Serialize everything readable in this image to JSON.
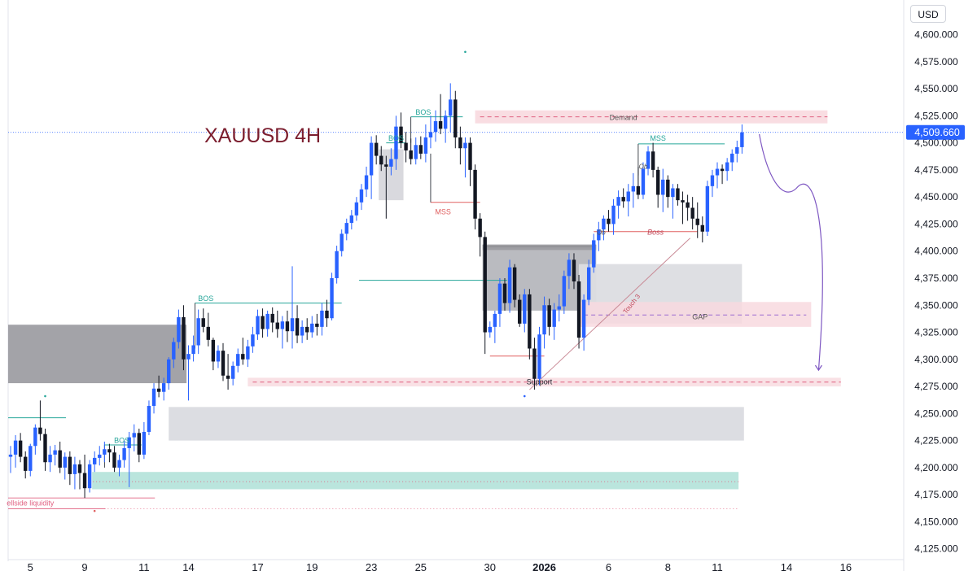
{
  "chart_data": {
    "type": "candlestick",
    "title": "XAUUSD 4H",
    "currency": "USD",
    "last_price": "4,509.660",
    "ylim": [
      4112,
      4620
    ],
    "y_ticks": [
      {
        "value": 4600,
        "label": "4,600.000"
      },
      {
        "value": 4575,
        "label": "4,575.000"
      },
      {
        "value": 4550,
        "label": "4,550.000"
      },
      {
        "value": 4525,
        "label": "4,525.000"
      },
      {
        "value": 4500,
        "label": "4,500.000"
      },
      {
        "value": 4475,
        "label": "4,475.000"
      },
      {
        "value": 4450,
        "label": "4,450.000"
      },
      {
        "value": 4425,
        "label": "4,425.000"
      },
      {
        "value": 4400,
        "label": "4,400.000"
      },
      {
        "value": 4375,
        "label": "4,375.000"
      },
      {
        "value": 4350,
        "label": "4,350.000"
      },
      {
        "value": 4325,
        "label": "4,325.000"
      },
      {
        "value": 4300,
        "label": "4,300.000"
      },
      {
        "value": 4275,
        "label": "4,275.000"
      },
      {
        "value": 4250,
        "label": "4,250.000"
      },
      {
        "value": 4225,
        "label": "4,225.000"
      },
      {
        "value": 4200,
        "label": "4,200.000"
      },
      {
        "value": 4175,
        "label": "4,175.000"
      },
      {
        "value": 4150,
        "label": "4,150.000"
      },
      {
        "value": 4125,
        "label": "4,125.000"
      }
    ],
    "x_ticks": [
      {
        "bar": 4,
        "label": "5",
        "bold": false
      },
      {
        "bar": 15,
        "label": "9",
        "bold": false
      },
      {
        "bar": 27,
        "label": "11",
        "bold": false
      },
      {
        "bar": 36,
        "label": "14",
        "bold": false
      },
      {
        "bar": 50,
        "label": "17",
        "bold": false
      },
      {
        "bar": 61,
        "label": "19",
        "bold": false
      },
      {
        "bar": 73,
        "label": "23",
        "bold": false
      },
      {
        "bar": 83,
        "label": "25",
        "bold": false
      },
      {
        "bar": 97,
        "label": "30",
        "bold": false
      },
      {
        "bar": 108,
        "label": "2026",
        "bold": true
      },
      {
        "bar": 121,
        "label": "6",
        "bold": false
      },
      {
        "bar": 133,
        "label": "8",
        "bold": false
      },
      {
        "bar": 143,
        "label": "11",
        "bold": false
      },
      {
        "bar": 157,
        "label": "14",
        "bold": false
      },
      {
        "bar": 169,
        "label": "16",
        "bold": false
      }
    ],
    "candles": [
      [
        4210,
        4220,
        4195,
        4212
      ],
      [
        4212,
        4230,
        4200,
        4225
      ],
      [
        4225,
        4232,
        4205,
        4210
      ],
      [
        4210,
        4215,
        4190,
        4197
      ],
      [
        4197,
        4222,
        4192,
        4220
      ],
      [
        4220,
        4240,
        4212,
        4237
      ],
      [
        4237,
        4262,
        4225,
        4231
      ],
      [
        4231,
        4236,
        4197,
        4205
      ],
      [
        4205,
        4220,
        4196,
        4212
      ],
      [
        4212,
        4221,
        4202,
        4216
      ],
      [
        4216,
        4224,
        4195,
        4200
      ],
      [
        4200,
        4214,
        4189,
        4210
      ],
      [
        4210,
        4215,
        4184,
        4194
      ],
      [
        4194,
        4210,
        4180,
        4203
      ],
      [
        4203,
        4207,
        4180,
        4195
      ],
      [
        4195,
        4212,
        4172,
        4181
      ],
      [
        4181,
        4207,
        4177,
        4203
      ],
      [
        4203,
        4215,
        4196,
        4209
      ],
      [
        4209,
        4220,
        4202,
        4212
      ],
      [
        4212,
        4224,
        4205,
        4217
      ],
      [
        4217,
        4222,
        4205,
        4214
      ],
      [
        4214,
        4220,
        4196,
        4200
      ],
      [
        4200,
        4212,
        4192,
        4207
      ],
      [
        4207,
        4225,
        4200,
        4218
      ],
      [
        4218,
        4233,
        4182,
        4228
      ],
      [
        4228,
        4240,
        4215,
        4232
      ],
      [
        4232,
        4236,
        4205,
        4212
      ],
      [
        4212,
        4242,
        4208,
        4233
      ],
      [
        4233,
        4262,
        4230,
        4257
      ],
      [
        4257,
        4278,
        4250,
        4273
      ],
      [
        4273,
        4285,
        4265,
        4270
      ],
      [
        4270,
        4283,
        4262,
        4278
      ],
      [
        4278,
        4302,
        4272,
        4300
      ],
      [
        4300,
        4320,
        4292,
        4316
      ],
      [
        4316,
        4346,
        4310,
        4339
      ],
      [
        4339,
        4350,
        4290,
        4300
      ],
      [
        4300,
        4313,
        4262,
        4305
      ],
      [
        4305,
        4322,
        4298,
        4313
      ],
      [
        4313,
        4346,
        4305,
        4338
      ],
      [
        4338,
        4347,
        4325,
        4330
      ],
      [
        4330,
        4343,
        4312,
        4318
      ],
      [
        4318,
        4320,
        4290,
        4298
      ],
      [
        4298,
        4313,
        4292,
        4308
      ],
      [
        4308,
        4315,
        4280,
        4285
      ],
      [
        4285,
        4305,
        4272,
        4282
      ],
      [
        4282,
        4298,
        4276,
        4294
      ],
      [
        4294,
        4310,
        4288,
        4305
      ],
      [
        4305,
        4320,
        4295,
        4300
      ],
      [
        4300,
        4318,
        4293,
        4312
      ],
      [
        4312,
        4330,
        4306,
        4323
      ],
      [
        4323,
        4346,
        4318,
        4340
      ],
      [
        4340,
        4347,
        4320,
        4328
      ],
      [
        4328,
        4345,
        4321,
        4342
      ],
      [
        4342,
        4348,
        4325,
        4334
      ],
      [
        4334,
        4345,
        4320,
        4328
      ],
      [
        4328,
        4340,
        4310,
        4335
      ],
      [
        4335,
        4345,
        4316,
        4326
      ],
      [
        4326,
        4386,
        4310,
        4338
      ],
      [
        4338,
        4350,
        4315,
        4322
      ],
      [
        4322,
        4336,
        4315,
        4330
      ],
      [
        4330,
        4338,
        4318,
        4325
      ],
      [
        4325,
        4340,
        4320,
        4333
      ],
      [
        4333,
        4342,
        4322,
        4330
      ],
      [
        4330,
        4352,
        4322,
        4345
      ],
      [
        4345,
        4355,
        4330,
        4338
      ],
      [
        4338,
        4380,
        4336,
        4375
      ],
      [
        4375,
        4405,
        4370,
        4400
      ],
      [
        4400,
        4420,
        4395,
        4416
      ],
      [
        4416,
        4430,
        4410,
        4426
      ],
      [
        4426,
        4438,
        4420,
        4433
      ],
      [
        4433,
        4450,
        4428,
        4445
      ],
      [
        4445,
        4462,
        4438,
        4457
      ],
      [
        4457,
        4478,
        4450,
        4470
      ],
      [
        4470,
        4506,
        4448,
        4500
      ],
      [
        4500,
        4507,
        4480,
        4488
      ],
      [
        4488,
        4497,
        4474,
        4480
      ],
      [
        4480,
        4488,
        4430,
        4478
      ],
      [
        4478,
        4495,
        4470,
        4485
      ],
      [
        4485,
        4525,
        4475,
        4515
      ],
      [
        4515,
        4528,
        4495,
        4500
      ],
      [
        4500,
        4510,
        4482,
        4493
      ],
      [
        4493,
        4504,
        4480,
        4485
      ],
      [
        4485,
        4505,
        4480,
        4498
      ],
      [
        4498,
        4506,
        4485,
        4490
      ],
      [
        4490,
        4517,
        4482,
        4505
      ],
      [
        4505,
        4525,
        4495,
        4510
      ],
      [
        4510,
        4530,
        4501,
        4520
      ],
      [
        4520,
        4545,
        4508,
        4513
      ],
      [
        4513,
        4530,
        4500,
        4525
      ],
      [
        4525,
        4555,
        4510,
        4540
      ],
      [
        4540,
        4548,
        4495,
        4505
      ],
      [
        4505,
        4515,
        4480,
        4495
      ],
      [
        4495,
        4505,
        4468,
        4500
      ],
      [
        4500,
        4505,
        4460,
        4475
      ],
      [
        4475,
        4480,
        4420,
        4430
      ],
      [
        4430,
        4435,
        4395,
        4413
      ],
      [
        4413,
        4418,
        4305,
        4325
      ],
      [
        4325,
        4335,
        4320,
        4330
      ],
      [
        4330,
        4345,
        4315,
        4342
      ],
      [
        4342,
        4375,
        4330,
        4370
      ],
      [
        4370,
        4375,
        4345,
        4352
      ],
      [
        4352,
        4392,
        4343,
        4385
      ],
      [
        4385,
        4388,
        4348,
        4355
      ],
      [
        4355,
        4360,
        4330,
        4333
      ],
      [
        4333,
        4365,
        4325,
        4360
      ],
      [
        4360,
        4365,
        4300,
        4310
      ],
      [
        4310,
        4320,
        4272,
        4282
      ],
      [
        4282,
        4330,
        4276,
        4323
      ],
      [
        4323,
        4358,
        4310,
        4350
      ],
      [
        4350,
        4356,
        4322,
        4330
      ],
      [
        4330,
        4352,
        4318,
        4346
      ],
      [
        4346,
        4360,
        4335,
        4349
      ],
      [
        4349,
        4382,
        4342,
        4377
      ],
      [
        4377,
        4398,
        4365,
        4392
      ],
      [
        4392,
        4398,
        4365,
        4372
      ],
      [
        4372,
        4378,
        4310,
        4320
      ],
      [
        4320,
        4360,
        4308,
        4355
      ],
      [
        4355,
        4392,
        4350,
        4385
      ],
      [
        4385,
        4416,
        4380,
        4410
      ],
      [
        4410,
        4427,
        4400,
        4420
      ],
      [
        4420,
        4433,
        4410,
        4430
      ],
      [
        4430,
        4438,
        4418,
        4425
      ],
      [
        4425,
        4448,
        4415,
        4442
      ],
      [
        4442,
        4456,
        4430,
        4450
      ],
      [
        4450,
        4458,
        4440,
        4446
      ],
      [
        4446,
        4462,
        4432,
        4455
      ],
      [
        4455,
        4472,
        4440,
        4460
      ],
      [
        4460,
        4478,
        4448,
        4452
      ],
      [
        4452,
        4482,
        4448,
        4476
      ],
      [
        4476,
        4497,
        4470,
        4492
      ],
      [
        4492,
        4500,
        4468,
        4475
      ],
      [
        4475,
        4478,
        4440,
        4452
      ],
      [
        4452,
        4476,
        4436,
        4466
      ],
      [
        4466,
        4470,
        4440,
        4450
      ],
      [
        4450,
        4462,
        4430,
        4458
      ],
      [
        4458,
        4462,
        4442,
        4447
      ],
      [
        4447,
        4455,
        4425,
        4445
      ],
      [
        4445,
        4452,
        4428,
        4440
      ],
      [
        4440,
        4450,
        4420,
        4430
      ],
      [
        4430,
        4445,
        4412,
        4424
      ],
      [
        4424,
        4432,
        4408,
        4418
      ],
      [
        4418,
        4465,
        4414,
        4460
      ],
      [
        4460,
        4475,
        4450,
        4470
      ],
      [
        4470,
        4482,
        4458,
        4476
      ],
      [
        4476,
        4480,
        4462,
        4474
      ],
      [
        4474,
        4486,
        4465,
        4482
      ],
      [
        4482,
        4494,
        4474,
        4490
      ],
      [
        4490,
        4502,
        4482,
        4496
      ],
      [
        4496,
        4517,
        4490,
        4509.66
      ]
    ],
    "annotations": {
      "bos_1": "BOS",
      "bos_2": "BOS",
      "bos_3": "BOS",
      "bos_4": "BOS",
      "mss_1": "MSS",
      "mss_2": "MSS",
      "demand": "Demand",
      "support": "Support",
      "gap": "GAP",
      "touch": "Touch 3",
      "boss": "Boss",
      "ob_1": "Ob",
      "ob_2": "Ob",
      "liquidity": "ellside liquidity"
    },
    "colors": {
      "bull": "#2962ff",
      "bear": "#131722",
      "zone_gray": "#9e9ea3",
      "zone_light": "#dcdde2",
      "zone_teal": "#b2e2d9",
      "zone_pink": "#f8d9df",
      "price_label": "#2962ff",
      "title": "#7b1d2e",
      "arrow": "#7e57c2"
    }
  }
}
